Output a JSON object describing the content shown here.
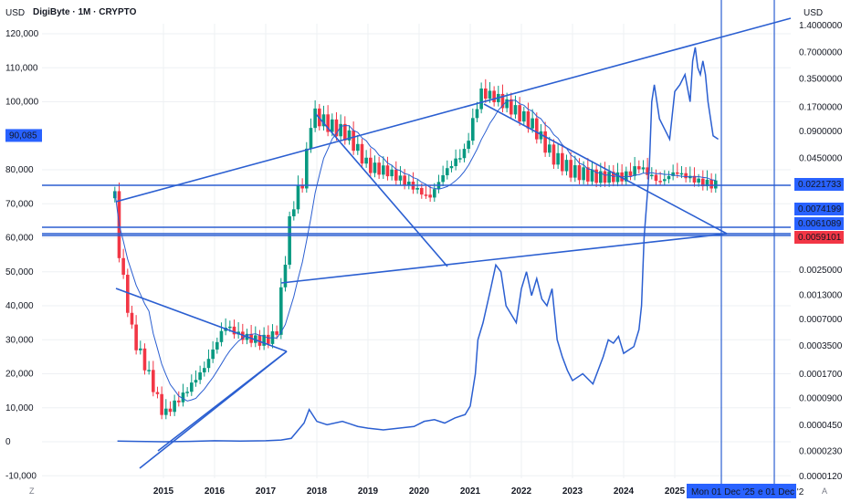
{
  "colors": {
    "up": "#089981",
    "down": "#f23645",
    "line": "#2b5fd1",
    "grid": "#eef0f3",
    "badge_blue": "#2962ff",
    "badge_red": "#f23645"
  },
  "chart_data": {
    "type": "line",
    "title": "DigiByte · 1M · CRYPTO",
    "x_ticks": [
      "2015",
      "2016",
      "2017",
      "2018",
      "2019",
      "2020",
      "2021",
      "2022",
      "2023",
      "2024",
      "2025"
    ],
    "left_axis": {
      "label": "USD",
      "ticks": [
        "120,000",
        "110,000",
        "100,000",
        "80,000",
        "70,000",
        "60,000",
        "50,000",
        "40,000",
        "30,000",
        "20,000",
        "10,000",
        "0",
        "-10,000"
      ],
      "tick_values": [
        120000,
        110000,
        100000,
        80000,
        70000,
        60000,
        50000,
        40000,
        30000,
        20000,
        10000,
        0,
        -10000
      ],
      "badge": "90,085",
      "badge_value": 90085
    },
    "right_axis": {
      "label": "USD",
      "scale": "log",
      "ticks": [
        "1.4000000",
        "0.7000000",
        "0.3500000",
        "0.1700000",
        "0.0900000",
        "0.0450000",
        "0.0025000",
        "0.0013000",
        "0.0007000",
        "0.0003500",
        "0.0001700",
        "0.0000900",
        "0.0000450",
        "0.0000230",
        "0.0000120"
      ],
      "tick_values": [
        1.4,
        0.7,
        0.35,
        0.17,
        0.09,
        0.045,
        0.0025,
        0.0013,
        0.0007,
        0.00035,
        0.00017,
        9e-05,
        4.5e-05,
        2.3e-05,
        1.2e-05
      ],
      "badges": [
        {
          "text": "0.0221733",
          "value": 0.0221733,
          "color": "blue"
        },
        {
          "text": "0.0074199",
          "value": 0.0074199,
          "color": "blue"
        },
        {
          "text": "0.0061089",
          "value": 0.0061089,
          "color": "blue"
        },
        {
          "text": "0.0059101",
          "value": 0.0059101,
          "color": "red"
        }
      ]
    },
    "series": [
      {
        "name": "",
        "kind": "line",
        "axis": "left",
        "x": [
          2014.1,
          2014.5,
          2015.0,
          2015.5,
          2016.0,
          2016.5,
          2017.0,
          2017.3,
          2017.5,
          2017.75,
          2017.85,
          2018.0,
          2018.2,
          2018.5,
          2018.8,
          2019.0,
          2019.3,
          2019.6,
          2019.9,
          2020.1,
          2020.3,
          2020.5,
          2020.7,
          2020.9,
          2021.0,
          2021.1,
          2021.15,
          2021.25,
          2021.4,
          2021.5,
          2021.6,
          2021.7,
          2021.9,
          2022.0,
          2022.1,
          2022.2,
          2022.3,
          2022.4,
          2022.5,
          2022.6,
          2022.7,
          2022.8,
          2022.9,
          2023.0,
          2023.2,
          2023.4,
          2023.6,
          2023.7,
          2023.8,
          2023.9,
          2024.0,
          2024.2,
          2024.3,
          2024.35,
          2024.4,
          2024.5,
          2024.55,
          2024.6,
          2024.7,
          2024.8,
          2024.9,
          2025.0,
          2025.1,
          2025.2,
          2025.3,
          2025.35,
          2025.4,
          2025.45,
          2025.5,
          2025.55,
          2025.6,
          2025.65,
          2025.75,
          2025.85
        ],
        "y": [
          200,
          100,
          0,
          100,
          300,
          200,
          300,
          500,
          1000,
          5500,
          9500,
          6000,
          5000,
          6000,
          4500,
          4000,
          3500,
          4000,
          4500,
          6000,
          6500,
          5500,
          7000,
          8000,
          10500,
          20000,
          30000,
          35000,
          45000,
          52000,
          50000,
          40000,
          35000,
          45000,
          50000,
          43000,
          48000,
          42000,
          40000,
          45000,
          30000,
          25000,
          21000,
          18000,
          20000,
          17000,
          25000,
          30000,
          29000,
          31000,
          26000,
          28000,
          33000,
          40000,
          60000,
          80000,
          100000,
          105000,
          95000,
          92000,
          89000,
          103000,
          105000,
          108000,
          100000,
          112000,
          116000,
          110000,
          108000,
          112000,
          108000,
          100000,
          90000,
          89000
        ]
      }
    ],
    "cursor_labels": [
      "Mon 01 Dec '25",
      "e 01 Dec '2"
    ],
    "corner_left": "Z",
    "corner_right": "A"
  }
}
